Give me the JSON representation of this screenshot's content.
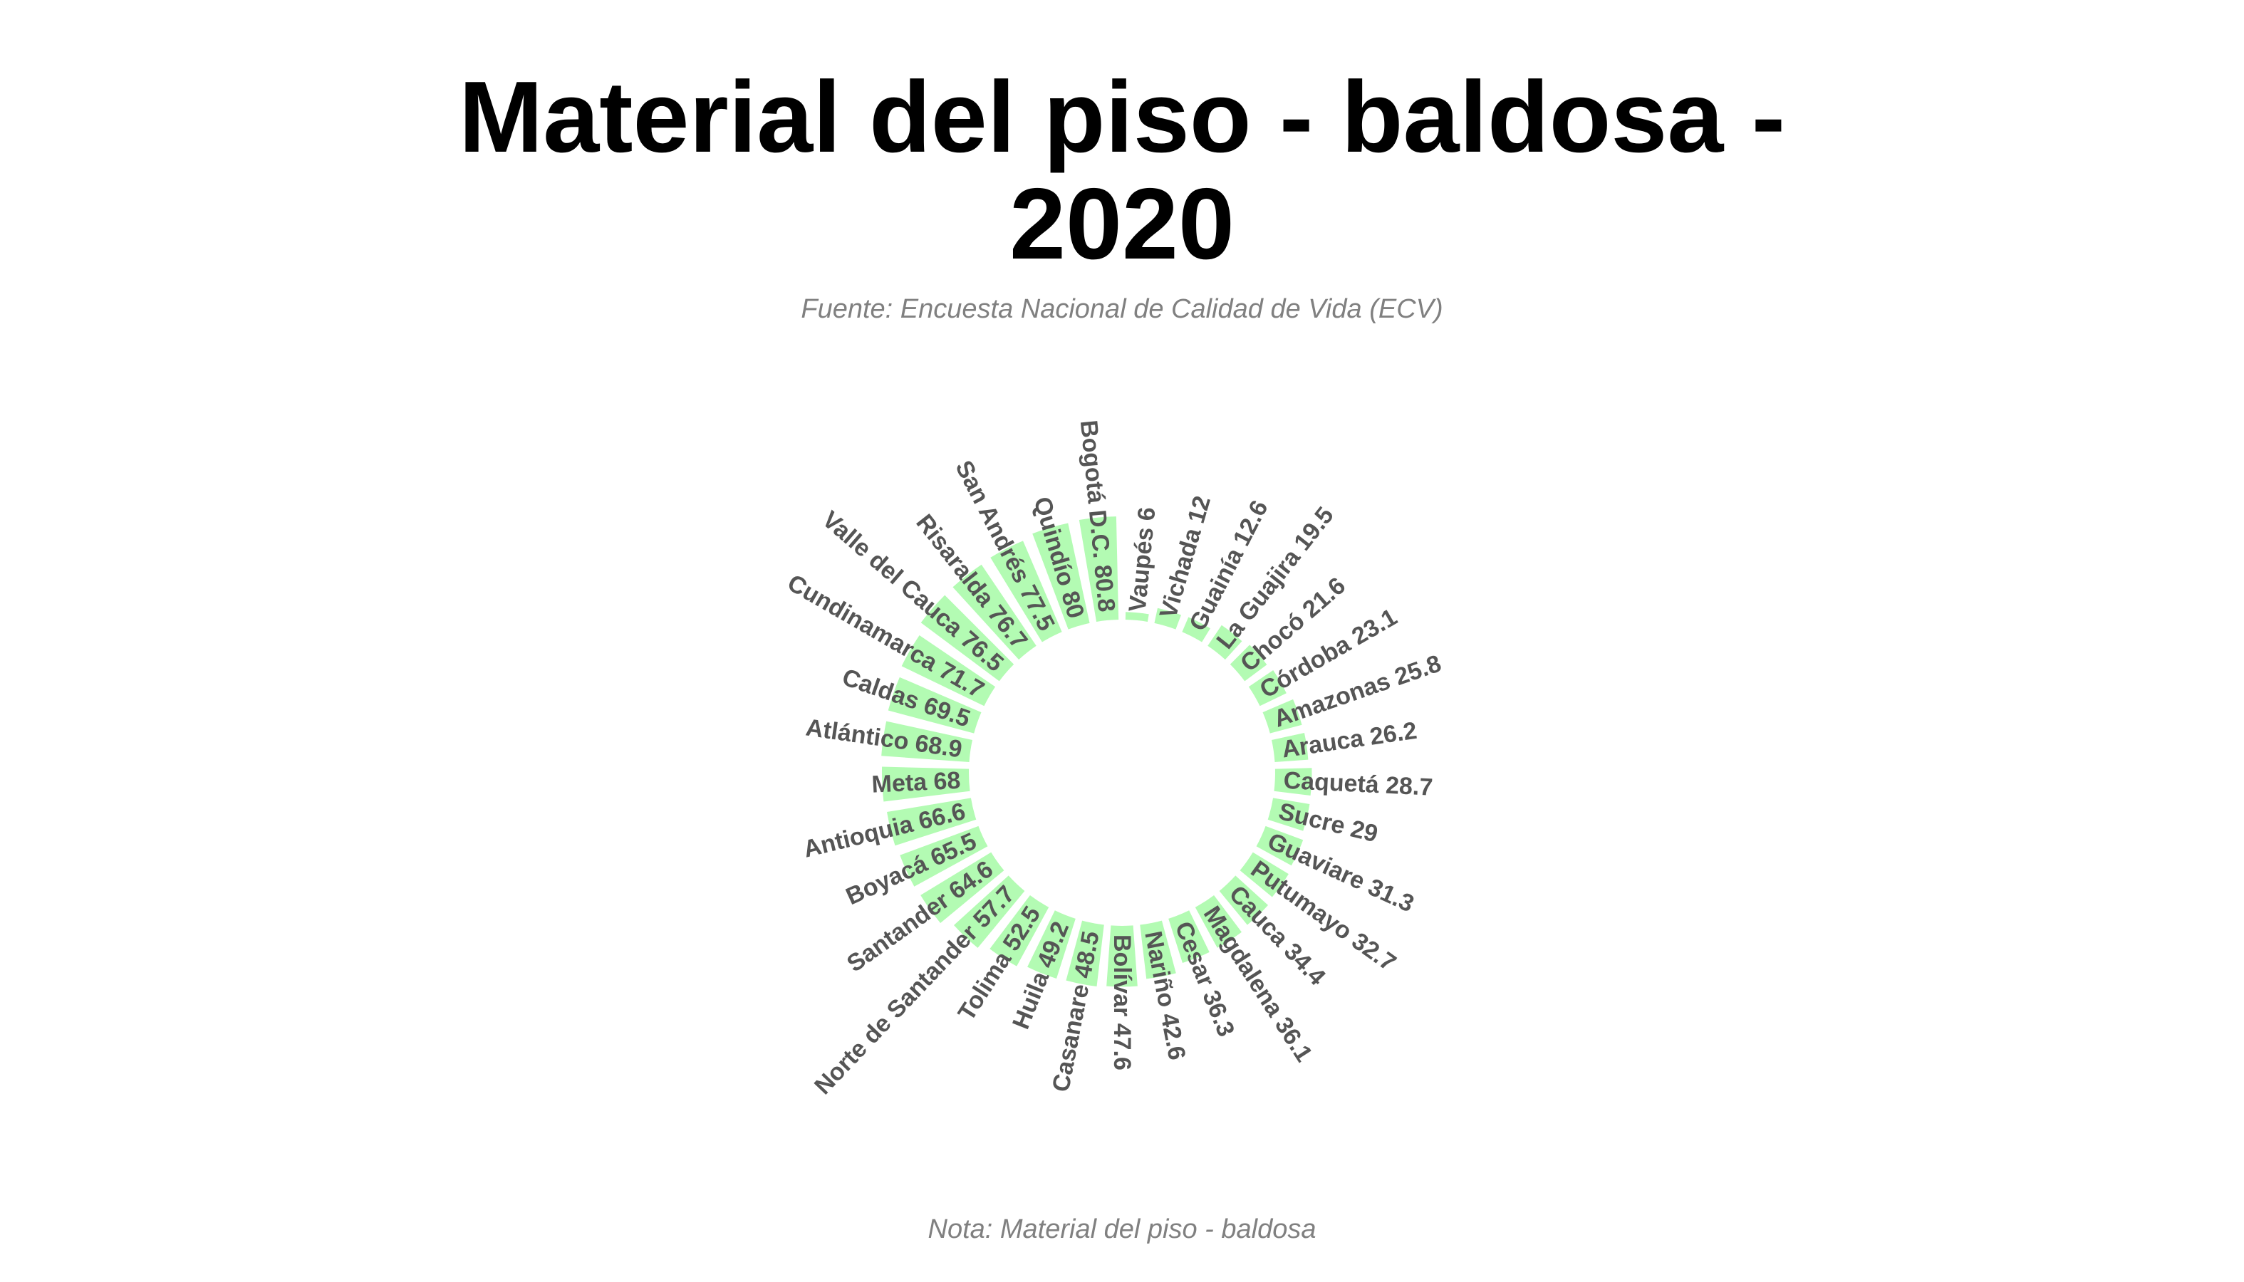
{
  "title_line1": "Material del piso - baldosa -",
  "title_line2": "2020",
  "subtitle": "Fuente: Encuesta Nacional de Calidad de Vida (ECV)",
  "note": "Nota: Material del piso - baldosa",
  "colors": {
    "bar": "#b3fbb3",
    "label": "#555555",
    "title": "#000000",
    "caption": "#808080"
  },
  "chart_data": {
    "type": "bar",
    "layout": "circular",
    "categories": [
      "Vaupés",
      "Vichada",
      "Guainía",
      "La Guajira",
      "Chocó",
      "Córdoba",
      "Amazonas",
      "Arauca",
      "Caquetá",
      "Sucre",
      "Guaviare",
      "Putumayo",
      "Cauca",
      "Magdalena",
      "Cesar",
      "Nariño",
      "Bolívar",
      "Casanare",
      "Huila",
      "Tolima",
      "Norte de Santander",
      "Santander",
      "Boyacá",
      "Antioquia",
      "Meta",
      "Atlántico",
      "Caldas",
      "Cundinamarca",
      "Valle del Cauca",
      "Risaralda",
      "San Andrés",
      "Quindío",
      "Bogotá D.C."
    ],
    "values": [
      6,
      12,
      12.6,
      19.5,
      21.6,
      23.1,
      25.8,
      26.2,
      28.7,
      29,
      31.3,
      32.7,
      34.4,
      36.1,
      36.3,
      42.6,
      47.6,
      48.5,
      49.2,
      52.5,
      57.7,
      64.6,
      65.5,
      66.6,
      68,
      68.9,
      69.5,
      71.7,
      76.5,
      76.7,
      77.5,
      80,
      80.8
    ],
    "labels": [
      "Vaupés 6",
      "Vichada 12",
      "Guainía 12.6",
      "La Guajira 19.5",
      "Chocó 21.6",
      "Córdoba 23.1",
      "Amazonas 25.8",
      "Arauca 26.2",
      "Caquetá 28.7",
      "Sucre 29",
      "Guaviare 31.3",
      "Putumayo 32.7",
      "Cauca 34.4",
      "Magdalena 36.1",
      "Cesar 36.3",
      "Nariño 42.6",
      "Bolívar 47.6",
      "Casanare 48.5",
      "Huila 49.2",
      "Tolima 52.5",
      "Norte de Santander 57.7",
      "Santander 64.6",
      "Boyacá 65.5",
      "Antioquia 66.6",
      "Meta 68",
      "Atlántico 68.9",
      "Caldas 69.5",
      "Cundinamarca 71.7",
      "Valle del Cauca 76.5",
      "Risaralda 76.7",
      "San Andrés 77.5",
      "Quindío 80",
      "Bogotá D.C. 80.8"
    ]
  }
}
